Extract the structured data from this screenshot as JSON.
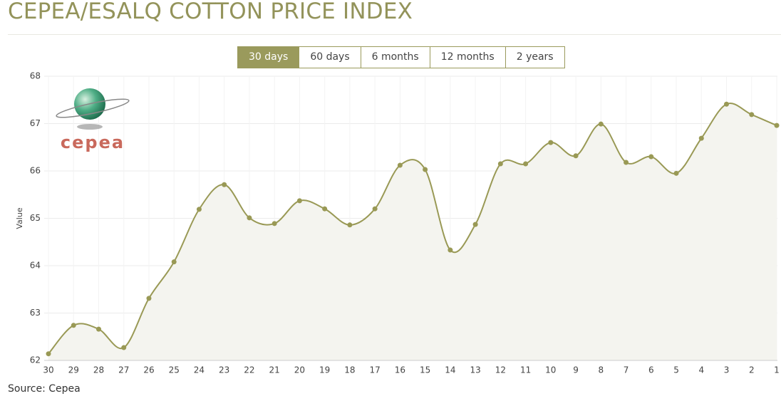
{
  "header": {
    "title": "CEPEA/ESALQ COTTON PRICE INDEX"
  },
  "buttons": [
    "30 days",
    "60 days",
    "6 months",
    "12 months",
    "2 years"
  ],
  "logo": {
    "text": "cepea"
  },
  "chart_data": {
    "type": "line",
    "y_label": "Value",
    "categories": [
      "30",
      "29",
      "28",
      "27",
      "26",
      "25",
      "24",
      "23",
      "22",
      "21",
      "20",
      "19",
      "18",
      "17",
      "16",
      "15",
      "14",
      "13",
      "12",
      "11",
      "10",
      "9",
      "8",
      "7",
      "6",
      "5",
      "4",
      "3",
      "2",
      "1"
    ],
    "values": [
      62.14,
      62.74,
      62.66,
      62.27,
      63.31,
      64.08,
      65.19,
      65.71,
      65.01,
      64.89,
      65.37,
      65.2,
      64.86,
      65.2,
      66.12,
      66.03,
      64.33,
      64.87,
      66.15,
      66.15,
      66.6,
      66.32,
      66.99,
      66.18,
      66.3,
      65.95,
      66.69,
      67.41,
      67.19,
      66.96
    ],
    "color": "#999955",
    "ylim": [
      62,
      68
    ],
    "yticks": [
      62,
      63,
      64,
      65,
      66,
      67,
      68
    ],
    "grid": true
  },
  "source": "Source: Cepea"
}
